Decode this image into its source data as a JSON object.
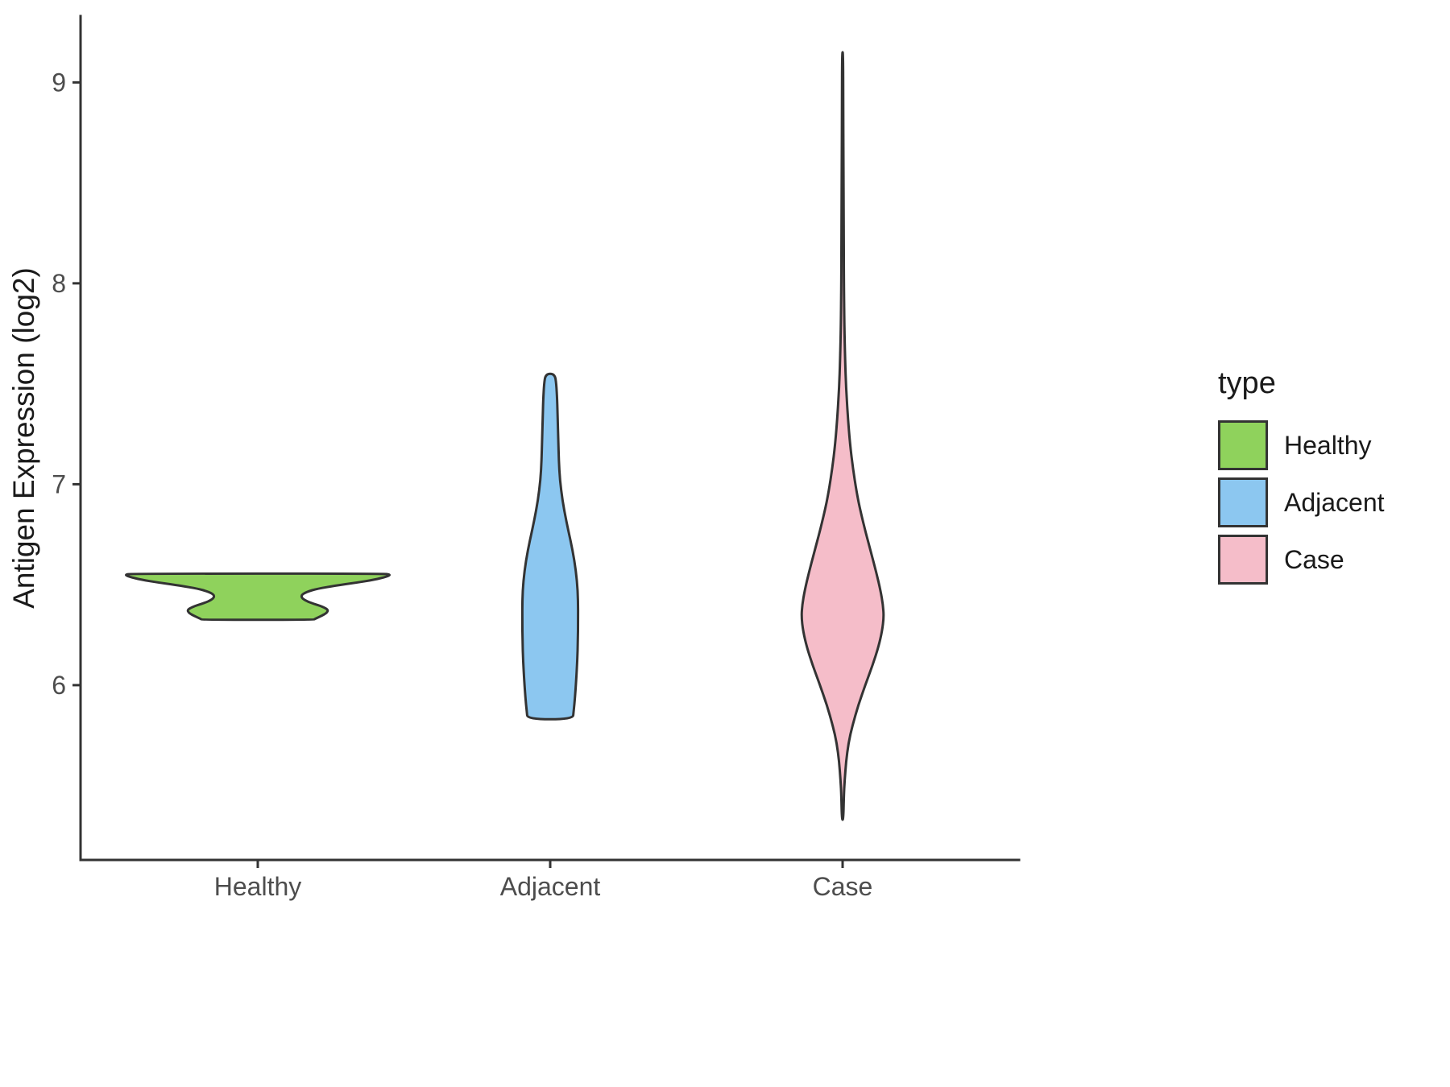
{
  "figure": {
    "background": "#FFFFFF"
  },
  "chart_data": {
    "type": "violin",
    "title": "",
    "xlabel": "",
    "ylabel": "Antigen Expression (log2)",
    "categories": [
      "Healthy",
      "Adjacent",
      "Case"
    ],
    "y_ticks": [
      6,
      7,
      8,
      9
    ],
    "ylim": [
      5.13,
      9.33
    ],
    "grid": false,
    "axis_color": "#333333",
    "tick_label_color": "#4D4D4D",
    "axis_title_color": "#1a1a1a",
    "legend": {
      "title": "type",
      "position": "right",
      "entries": [
        {
          "label": "Healthy",
          "color": "#8FD25C"
        },
        {
          "label": "Adjacent",
          "color": "#8CC7F0"
        },
        {
          "label": "Case",
          "color": "#F5BDC9"
        }
      ]
    },
    "series": [
      {
        "name": "Healthy",
        "color": "#8FD25C",
        "outline": "#333333",
        "width_scale": 1.0,
        "range": [
          6.325,
          6.555
        ],
        "profile": [
          [
            6.555,
            0.95
          ],
          [
            6.55,
            1.0
          ],
          [
            6.54,
            0.97
          ],
          [
            6.525,
            0.88
          ],
          [
            6.51,
            0.74
          ],
          [
            6.495,
            0.58
          ],
          [
            6.48,
            0.45
          ],
          [
            6.465,
            0.37
          ],
          [
            6.45,
            0.33
          ],
          [
            6.435,
            0.33
          ],
          [
            6.42,
            0.36
          ],
          [
            6.405,
            0.42
          ],
          [
            6.39,
            0.49
          ],
          [
            6.375,
            0.53
          ],
          [
            6.36,
            0.52
          ],
          [
            6.345,
            0.48
          ],
          [
            6.33,
            0.43
          ],
          [
            6.325,
            0.42
          ]
        ]
      },
      {
        "name": "Adjacent",
        "color": "#8CC7F0",
        "outline": "#333333",
        "width_scale": 0.21,
        "range": [
          5.83,
          7.55
        ],
        "profile": [
          [
            7.55,
            0.16
          ],
          [
            7.5,
            0.22
          ],
          [
            7.42,
            0.25
          ],
          [
            7.32,
            0.27
          ],
          [
            7.22,
            0.29
          ],
          [
            7.12,
            0.31
          ],
          [
            7.02,
            0.35
          ],
          [
            6.92,
            0.44
          ],
          [
            6.82,
            0.57
          ],
          [
            6.72,
            0.73
          ],
          [
            6.62,
            0.87
          ],
          [
            6.52,
            0.96
          ],
          [
            6.42,
            1.0
          ],
          [
            6.32,
            1.0
          ],
          [
            6.22,
            0.99
          ],
          [
            6.12,
            0.97
          ],
          [
            6.02,
            0.93
          ],
          [
            5.94,
            0.89
          ],
          [
            5.87,
            0.84
          ],
          [
            5.83,
            0.81
          ]
        ]
      },
      {
        "name": "Case",
        "color": "#F5BDC9",
        "outline": "#333333",
        "width_scale": 0.31,
        "range": [
          5.33,
          9.15
        ],
        "profile": [
          [
            9.15,
            0.012
          ],
          [
            8.9,
            0.016
          ],
          [
            8.6,
            0.02
          ],
          [
            8.3,
            0.025
          ],
          [
            8.0,
            0.032
          ],
          [
            7.8,
            0.042
          ],
          [
            7.62,
            0.06
          ],
          [
            7.48,
            0.085
          ],
          [
            7.34,
            0.125
          ],
          [
            7.2,
            0.18
          ],
          [
            7.08,
            0.25
          ],
          [
            6.96,
            0.34
          ],
          [
            6.86,
            0.44
          ],
          [
            6.76,
            0.56
          ],
          [
            6.66,
            0.69
          ],
          [
            6.56,
            0.82
          ],
          [
            6.47,
            0.92
          ],
          [
            6.4,
            0.98
          ],
          [
            6.34,
            1.0
          ],
          [
            6.27,
            0.96
          ],
          [
            6.19,
            0.87
          ],
          [
            6.1,
            0.73
          ],
          [
            6.0,
            0.55
          ],
          [
            5.9,
            0.38
          ],
          [
            5.8,
            0.24
          ],
          [
            5.71,
            0.14
          ],
          [
            5.62,
            0.085
          ],
          [
            5.53,
            0.05
          ],
          [
            5.44,
            0.03
          ],
          [
            5.33,
            0.015
          ]
        ]
      }
    ]
  }
}
